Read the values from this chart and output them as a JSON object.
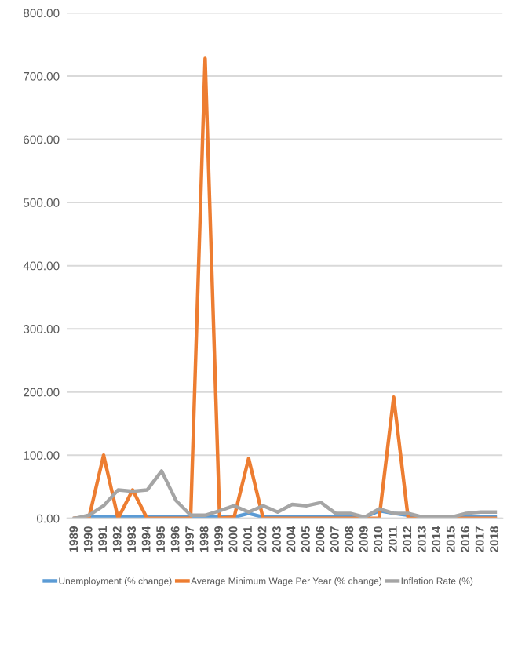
{
  "chart_data": {
    "type": "line",
    "categories": [
      "1989",
      "1990",
      "1991",
      "1992",
      "1993",
      "1994",
      "1995",
      "1996",
      "1997",
      "1998",
      "1999",
      "2000",
      "2001",
      "2002",
      "2003",
      "2004",
      "2005",
      "2006",
      "2007",
      "2008",
      "2009",
      "2010",
      "2011",
      "2012",
      "2013",
      "2014",
      "2015",
      "2016",
      "2017",
      "2018"
    ],
    "series": [
      {
        "name": "Unemployment (% change)",
        "color": "#5b9bd5",
        "values": [
          0,
          2,
          2,
          2,
          2,
          2,
          2,
          2,
          2,
          2,
          2,
          2,
          8,
          2,
          2,
          2,
          2,
          2,
          2,
          2,
          2,
          12,
          8,
          5,
          2,
          2,
          2,
          2,
          2,
          2
        ]
      },
      {
        "name": "Average Minimum Wage Per Year (% change)",
        "color": "#ed7d31",
        "values": [
          0,
          2,
          100,
          0,
          45,
          0,
          0,
          0,
          0,
          728,
          0,
          2,
          95,
          0,
          0,
          0,
          0,
          0,
          0,
          0,
          0,
          0,
          192,
          0,
          0,
          0,
          0,
          0,
          0,
          0
        ]
      },
      {
        "name": "Inflation Rate (%)",
        "color": "#a5a5a5",
        "values": [
          0,
          5,
          20,
          45,
          43,
          45,
          75,
          28,
          5,
          5,
          12,
          20,
          10,
          20,
          10,
          22,
          20,
          25,
          8,
          8,
          2,
          15,
          8,
          8,
          2,
          2,
          2,
          8,
          10,
          10
        ]
      }
    ],
    "ylim": [
      0,
      800
    ],
    "yticks": [
      {
        "value": 0,
        "label": "0.00"
      },
      {
        "value": 100,
        "label": "100.00"
      },
      {
        "value": 200,
        "label": "200.00"
      },
      {
        "value": 300,
        "label": "300.00"
      },
      {
        "value": 400,
        "label": "400.00"
      },
      {
        "value": 500,
        "label": "500.00"
      },
      {
        "value": 600,
        "label": "600.00"
      },
      {
        "value": 700,
        "label": "700.00"
      },
      {
        "value": 800,
        "label": "800.00"
      }
    ],
    "grid": "y",
    "legend": "bottom",
    "marker": "none",
    "line_style": "solid"
  }
}
